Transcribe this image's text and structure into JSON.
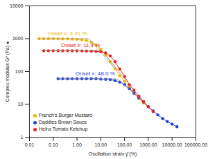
{
  "chart_data": {
    "type": "line",
    "marker": "circle",
    "log": true,
    "legend": "lower left",
    "xlabel": "Oscillation strain γ̂ (%)",
    "ylabel": "Complex modulus G* (Pa) ●",
    "xlim": [
      0.01,
      100000
    ],
    "ylim": [
      1,
      10000
    ],
    "xticks": [
      {
        "value": 0.01,
        "label": "0.01"
      },
      {
        "value": 0.1,
        "label": "0.10"
      },
      {
        "value": 1,
        "label": "1.00"
      },
      {
        "value": 10,
        "label": "10.00"
      },
      {
        "value": 100,
        "label": "100.00"
      },
      {
        "value": 1000,
        "label": "1000.00"
      },
      {
        "value": 10000,
        "label": "10000.00"
      },
      {
        "value": 100000,
        "label": "100000.00"
      }
    ],
    "yticks": [
      1,
      10,
      100,
      1000,
      10000
    ],
    "series": [
      {
        "name": "French's Burger Mustard",
        "color": "#f2b800",
        "x": [
          0.025,
          0.04,
          0.063,
          0.1,
          0.16,
          0.25,
          0.4,
          0.63,
          1,
          1.6,
          2.5,
          4,
          6.3,
          10,
          16,
          25,
          40,
          63,
          100,
          160,
          250,
          400,
          630,
          1000
        ],
        "values": [
          1000,
          1000,
          1000,
          1000,
          995,
          990,
          985,
          975,
          960,
          930,
          880,
          780,
          640,
          480,
          320,
          200,
          120,
          75,
          50,
          33,
          22,
          15,
          11,
          8.5
        ],
        "onset_x": 3.21,
        "onset_label": "Onset x: 3.21 %"
      },
      {
        "name": "Daddies Brown Sauce",
        "color": "#1f3fd6",
        "x": [
          0.16,
          0.25,
          0.4,
          0.63,
          1,
          1.6,
          2.5,
          4,
          6.3,
          10,
          16,
          25,
          40,
          63,
          100,
          160,
          250,
          400,
          630,
          1000,
          1600,
          2500,
          4000,
          6300,
          10000,
          16000
        ],
        "values": [
          60,
          60,
          60,
          60,
          60,
          60,
          60,
          60,
          60,
          59,
          58,
          57,
          53,
          48,
          40,
          30,
          22,
          16,
          12,
          8.5,
          6.3,
          4.8,
          3.7,
          3,
          2.5,
          2.1
        ],
        "onset_x": 48.0,
        "onset_label": "Onset x: 48.0 %"
      },
      {
        "name": "Heinz Tomato Ketchup",
        "color": "#e8211a",
        "x": [
          0.04,
          0.063,
          0.1,
          0.16,
          0.25,
          0.4,
          0.63,
          1,
          1.6,
          2.5,
          4,
          6.3,
          10,
          16,
          25,
          40,
          63,
          100,
          160,
          250,
          400,
          630,
          1000,
          1600
        ],
        "values": [
          430,
          430,
          430,
          430,
          430,
          430,
          430,
          428,
          426,
          424,
          420,
          415,
          405,
          370,
          300,
          200,
          120,
          70,
          40,
          27,
          18,
          12,
          8.5,
          6
        ],
        "onset_x": 11.4,
        "onset_label": "Onset x: 11.4 %"
      }
    ]
  }
}
